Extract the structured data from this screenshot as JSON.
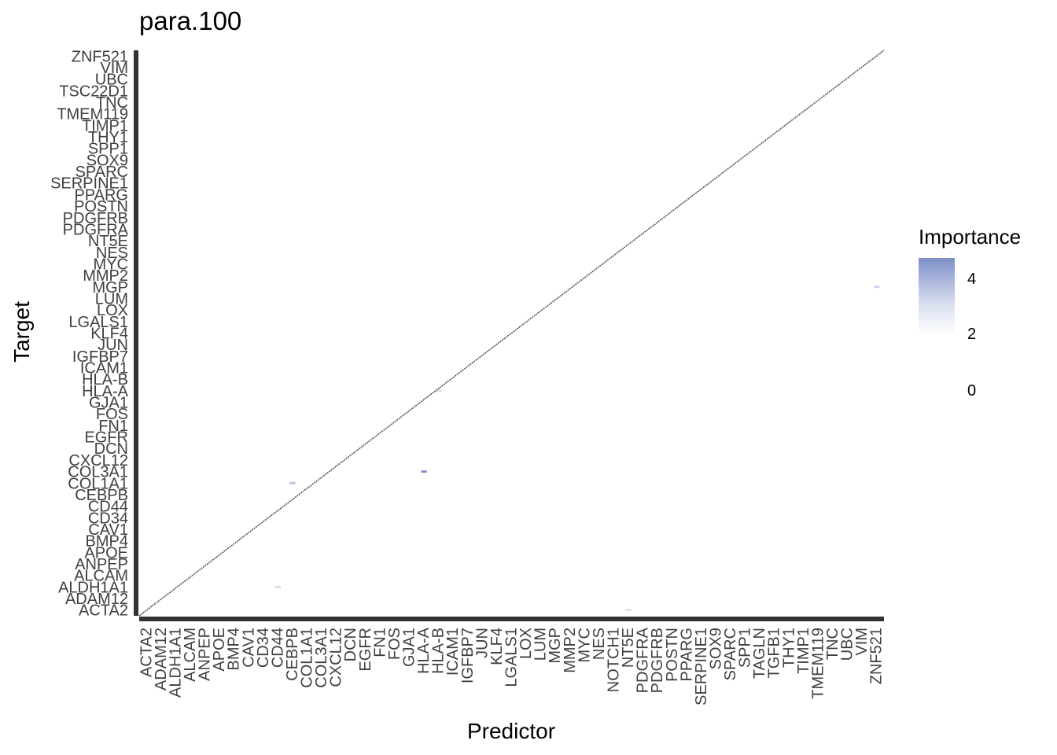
{
  "title": "para.100",
  "x_axis_title": "Predictor",
  "y_axis_title": "Target",
  "legend": {
    "title": "Importance",
    "ticks": [
      "4",
      "2",
      "0"
    ]
  },
  "colors": {
    "low": "#ffffff",
    "high": "#7f8fc8",
    "diagonal": "#555555",
    "tick_text": "#404040"
  },
  "chart_data": {
    "type": "heatmap",
    "title": "para.100",
    "xlabel": "Predictor",
    "ylabel": "Target",
    "legend_title": "Importance",
    "color_range": [
      0,
      4.8
    ],
    "grid": false,
    "legend_position": "right",
    "diagonal": "self-pairs drawn along the main diagonal",
    "visible_x_tick_labels": [
      "ACTA2",
      "ADAM12",
      "ALDH1A1",
      "ALCAM",
      "ANPEP",
      "APOE",
      "BMP4",
      "CAV1",
      "CD34",
      "CD44",
      "CEBPB",
      "COL1A1",
      "COL3A1",
      "CXCL12",
      "DCN",
      "EGFR",
      "FN1",
      "FOS",
      "GJA1",
      "HLA-A",
      "HLA-B",
      "ICAM1",
      "IGFBP7",
      "JUN",
      "KLF4",
      "LGALS1",
      "LOX",
      "LUM",
      "MGP",
      "MMP2",
      "MYC",
      "NES",
      "NOTCH1",
      "NT5E",
      "PDGFRA",
      "PDGFRB",
      "POSTN",
      "PPARG",
      "SERPINE1",
      "SOX9",
      "SPARC",
      "SPP1",
      "TAGLN",
      "TGFB1",
      "THY1",
      "TIMP1",
      "TMEM119",
      "TNC",
      "UBC",
      "VIM",
      "ZNF521"
    ],
    "visible_y_tick_labels": [
      "ZNF521",
      "VIM",
      "UBC",
      "TSC22D1",
      "TNC",
      "TMEM119",
      "TIMP1",
      "THY1",
      "SPP1",
      "SOX9",
      "SPARC",
      "SERPINE1",
      "PPARG",
      "POSTN",
      "PDGFRB",
      "PDGFRA",
      "NT5E",
      "NES",
      "MYC",
      "MMP2",
      "MGP",
      "LUM",
      "LOX",
      "LGALS1",
      "KLF4",
      "JUN",
      "IGFBP7",
      "ICAM1",
      "HLA-B",
      "HLA-A",
      "GJA1",
      "FOS",
      "FN1",
      "EGFR",
      "DCN",
      "CXCL12",
      "COL3A1",
      "COL1A1",
      "CEBPB",
      "CD44",
      "CD34",
      "CAV1",
      "BMP4",
      "APOE",
      "ANPEP",
      "ALCAM",
      "ALDH1A1",
      "ADAM12",
      "ACTA2"
    ],
    "highlighted_cells": [
      {
        "predictor": "HLA-A",
        "target": "COL3A1",
        "importance": 4.5
      },
      {
        "predictor": "CEBPB",
        "target": "COL1A1",
        "importance": 2.5
      },
      {
        "predictor": "ZNF521",
        "target": "MGP",
        "importance": 1.8
      },
      {
        "predictor": "CD44",
        "target": "ALDH1A1",
        "importance": 1.5
      },
      {
        "predictor": "HLA-B",
        "target": "HLA-A",
        "importance": 1.5
      },
      {
        "predictor": "NT5E",
        "target": "ACTA2",
        "importance": 1.2
      }
    ]
  }
}
